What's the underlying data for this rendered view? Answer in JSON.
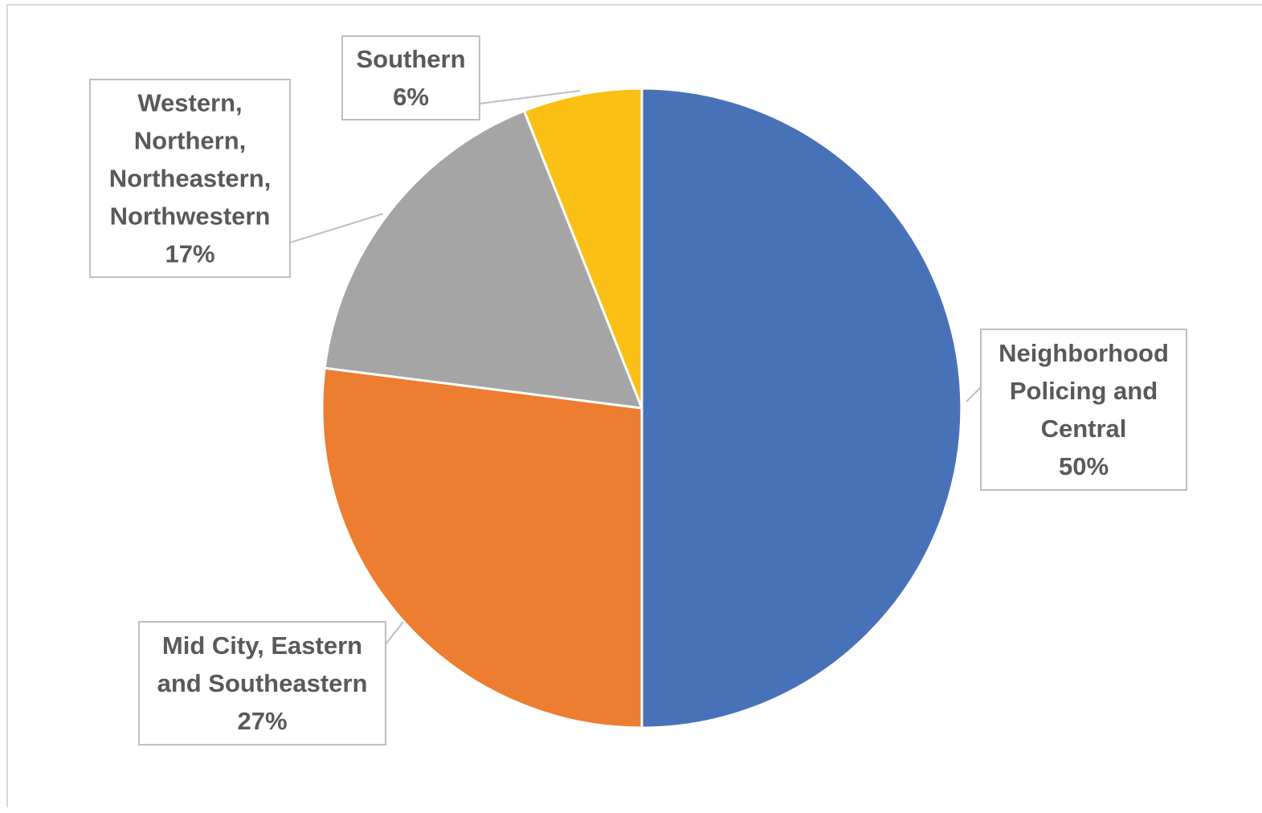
{
  "chart_data": {
    "type": "pie",
    "title": "",
    "start_angle_deg": 0,
    "direction": "clockwise",
    "slices": [
      {
        "label_lines": [
          "Neighborhood",
          "Policing and",
          "Central"
        ],
        "percent_label": "50%",
        "value": 50,
        "color": "#4872B8"
      },
      {
        "label_lines": [
          "Mid City, Eastern",
          "and Southeastern"
        ],
        "percent_label": "27%",
        "value": 27,
        "color": "#ED7D31"
      },
      {
        "label_lines": [
          "Western,",
          "Northern,",
          "Northeastern,",
          "Northwestern"
        ],
        "percent_label": "17%",
        "value": 17,
        "color": "#A5A5A5"
      },
      {
        "label_lines": [
          "Southern"
        ],
        "percent_label": "6%",
        "value": 6,
        "color": "#FBC016"
      }
    ],
    "slice_border_color": "#ffffff",
    "label_text_color": "#595959",
    "label_box_border_color": "#bfbfbf"
  }
}
